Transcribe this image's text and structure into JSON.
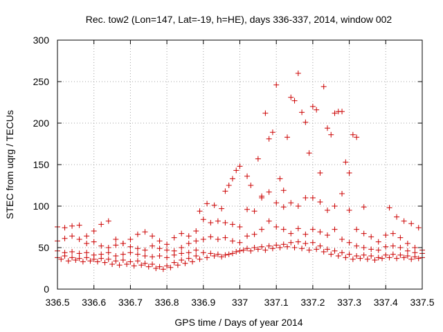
{
  "chart_data": {
    "type": "scatter",
    "title": "Rec. tow2 (Lon=147, Lat=-19, h=HE), days 336-337, 2014, window 002",
    "xlabel": "GPS time / Days of year 2014",
    "ylabel": "STEC from uqrg / TECUs",
    "xlim": [
      336.5,
      337.5
    ],
    "ylim": [
      0,
      300
    ],
    "xticks": [
      336.5,
      336.6,
      336.7,
      336.8,
      336.9,
      337,
      337.1,
      337.2,
      337.3,
      337.4,
      337.5
    ],
    "xtick_labels": [
      "336.5",
      "336.6",
      "336.7",
      "336.8",
      "336.9",
      "337",
      "337.1",
      "337.2",
      "337.3",
      "337.4",
      "337.5"
    ],
    "yticks": [
      0,
      50,
      100,
      150,
      200,
      250,
      300
    ],
    "ytick_labels": [
      "0",
      "50",
      "100",
      "150",
      "200",
      "250",
      "300"
    ],
    "grid": true,
    "marker": "+",
    "color": "#cc0000",
    "series": [
      {
        "points": [
          [
            336.5,
            75
          ],
          [
            336.52,
            74
          ],
          [
            336.54,
            76
          ],
          [
            336.56,
            77
          ],
          [
            336.58,
            64
          ],
          [
            336.6,
            70
          ],
          [
            336.62,
            78
          ],
          [
            336.64,
            82
          ],
          [
            336.66,
            60
          ],
          [
            336.68,
            55
          ],
          [
            336.7,
            60
          ],
          [
            336.72,
            66
          ],
          [
            336.74,
            69
          ],
          [
            336.76,
            64
          ],
          [
            336.78,
            58
          ],
          [
            336.8,
            54
          ],
          [
            336.82,
            62
          ],
          [
            336.84,
            67
          ],
          [
            336.86,
            64
          ],
          [
            336.88,
            70
          ],
          [
            336.89,
            94
          ],
          [
            336.91,
            103
          ],
          [
            336.93,
            101
          ],
          [
            336.95,
            97
          ],
          [
            336.96,
            118
          ],
          [
            336.97,
            125
          ],
          [
            336.98,
            133
          ],
          [
            336.99,
            143
          ],
          [
            337.0,
            148
          ],
          [
            337.02,
            136
          ],
          [
            337.03,
            125
          ],
          [
            337.05,
            157
          ],
          [
            337.06,
            110
          ],
          [
            337.07,
            212
          ],
          [
            337.08,
            181
          ],
          [
            337.09,
            189
          ],
          [
            337.1,
            246
          ],
          [
            337.11,
            133
          ],
          [
            337.12,
            119
          ],
          [
            337.13,
            183
          ],
          [
            337.14,
            231
          ],
          [
            337.15,
            227
          ],
          [
            337.16,
            260
          ],
          [
            337.17,
            213
          ],
          [
            337.18,
            201
          ],
          [
            337.19,
            164
          ],
          [
            337.2,
            220
          ],
          [
            337.21,
            216
          ],
          [
            337.22,
            140
          ],
          [
            337.23,
            244
          ],
          [
            337.24,
            194
          ],
          [
            337.25,
            186
          ],
          [
            337.26,
            212
          ],
          [
            337.27,
            214
          ],
          [
            337.28,
            214
          ],
          [
            337.29,
            153
          ],
          [
            337.3,
            140
          ],
          [
            337.31,
            186
          ],
          [
            337.32,
            183
          ],
          [
            337.34,
            99
          ],
          [
            337.41,
            98
          ],
          [
            337.43,
            87
          ],
          [
            337.45,
            82
          ],
          [
            337.47,
            79
          ],
          [
            337.49,
            74
          ]
        ]
      },
      {
        "points": [
          [
            336.5,
            58
          ],
          [
            336.52,
            61
          ],
          [
            336.54,
            64
          ],
          [
            336.56,
            60
          ],
          [
            336.58,
            55
          ],
          [
            336.6,
            57
          ],
          [
            336.62,
            52
          ],
          [
            336.64,
            50
          ],
          [
            336.66,
            53
          ],
          [
            336.68,
            55
          ],
          [
            336.7,
            51
          ],
          [
            336.72,
            49
          ],
          [
            336.74,
            47
          ],
          [
            336.76,
            52
          ],
          [
            336.78,
            49
          ],
          [
            336.8,
            47
          ],
          [
            336.82,
            46
          ],
          [
            336.84,
            50
          ],
          [
            336.86,
            55
          ],
          [
            336.88,
            58
          ],
          [
            336.9,
            84
          ],
          [
            336.92,
            80
          ],
          [
            336.94,
            82
          ],
          [
            336.96,
            80
          ],
          [
            336.98,
            78
          ],
          [
            337.0,
            75
          ],
          [
            337.02,
            96
          ],
          [
            337.04,
            94
          ],
          [
            337.06,
            112
          ],
          [
            337.08,
            117
          ],
          [
            337.1,
            104
          ],
          [
            337.12,
            99
          ],
          [
            337.14,
            104
          ],
          [
            337.16,
            100
          ],
          [
            337.18,
            110
          ],
          [
            337.2,
            110
          ],
          [
            337.22,
            105
          ],
          [
            337.24,
            95
          ],
          [
            337.26,
            100
          ],
          [
            337.28,
            115
          ],
          [
            337.3,
            95
          ],
          [
            337.32,
            72
          ],
          [
            337.34,
            67
          ],
          [
            337.36,
            63
          ],
          [
            337.38,
            57
          ],
          [
            337.4,
            65
          ],
          [
            337.42,
            67
          ],
          [
            337.44,
            62
          ],
          [
            337.46,
            55
          ],
          [
            337.48,
            50
          ],
          [
            337.5,
            47
          ]
        ]
      },
      {
        "points": [
          [
            336.5,
            46
          ],
          [
            336.52,
            44
          ],
          [
            336.54,
            45
          ],
          [
            336.56,
            43
          ],
          [
            336.58,
            44
          ],
          [
            336.6,
            41
          ],
          [
            336.62,
            42
          ],
          [
            336.64,
            44
          ],
          [
            336.66,
            40
          ],
          [
            336.68,
            42
          ],
          [
            336.7,
            44
          ],
          [
            336.72,
            42
          ],
          [
            336.74,
            40
          ],
          [
            336.76,
            39
          ],
          [
            336.78,
            40
          ],
          [
            336.8,
            38
          ],
          [
            336.82,
            41
          ],
          [
            336.84,
            43
          ],
          [
            336.86,
            44
          ],
          [
            336.88,
            47
          ],
          [
            336.9,
            60
          ],
          [
            336.92,
            63
          ],
          [
            336.94,
            60
          ],
          [
            336.96,
            62
          ],
          [
            336.98,
            58
          ],
          [
            337.0,
            56
          ],
          [
            337.02,
            64
          ],
          [
            337.04,
            66
          ],
          [
            337.06,
            72
          ],
          [
            337.08,
            82
          ],
          [
            337.1,
            75
          ],
          [
            337.12,
            72
          ],
          [
            337.14,
            67
          ],
          [
            337.16,
            73
          ],
          [
            337.18,
            66
          ],
          [
            337.2,
            72
          ],
          [
            337.22,
            69
          ],
          [
            337.24,
            65
          ],
          [
            337.26,
            72
          ],
          [
            337.28,
            60
          ],
          [
            337.3,
            56
          ],
          [
            337.32,
            52
          ],
          [
            337.34,
            50
          ],
          [
            337.36,
            48
          ],
          [
            337.38,
            47
          ],
          [
            337.4,
            51
          ],
          [
            337.42,
            52
          ],
          [
            337.44,
            50
          ],
          [
            337.46,
            46
          ],
          [
            337.48,
            44
          ],
          [
            337.5,
            43
          ]
        ]
      },
      {
        "points": [
          [
            336.5,
            38
          ],
          [
            336.52,
            40
          ],
          [
            336.54,
            38
          ],
          [
            336.56,
            37
          ],
          [
            336.58,
            38
          ],
          [
            336.6,
            36
          ],
          [
            336.62,
            37
          ],
          [
            336.64,
            36
          ],
          [
            336.66,
            34
          ],
          [
            336.68,
            35
          ],
          [
            336.7,
            33
          ],
          [
            336.72,
            34
          ],
          [
            336.74,
            31
          ],
          [
            336.76,
            30
          ],
          [
            336.78,
            27
          ],
          [
            336.8,
            28
          ],
          [
            336.82,
            32
          ],
          [
            336.84,
            35
          ],
          [
            336.86,
            37
          ],
          [
            336.88,
            40
          ],
          [
            336.9,
            44
          ],
          [
            336.92,
            43
          ],
          [
            336.94,
            42
          ],
          [
            336.96,
            41
          ],
          [
            336.98,
            43
          ],
          [
            337.0,
            46
          ],
          [
            337.02,
            49
          ],
          [
            337.04,
            50
          ],
          [
            337.06,
            51
          ],
          [
            337.08,
            52
          ],
          [
            337.1,
            53
          ],
          [
            337.12,
            54
          ],
          [
            337.14,
            56
          ],
          [
            337.16,
            57
          ],
          [
            337.18,
            55
          ],
          [
            337.2,
            56
          ],
          [
            337.22,
            52
          ],
          [
            337.24,
            48
          ],
          [
            337.26,
            46
          ],
          [
            337.28,
            44
          ],
          [
            337.3,
            42
          ],
          [
            337.32,
            40
          ],
          [
            337.34,
            41
          ],
          [
            337.36,
            40
          ],
          [
            337.38,
            38
          ],
          [
            337.4,
            41
          ],
          [
            337.42,
            42
          ],
          [
            337.44,
            41
          ],
          [
            337.46,
            40
          ],
          [
            337.48,
            39
          ],
          [
            337.5,
            38
          ]
        ]
      },
      {
        "points": [
          [
            336.51,
            36
          ],
          [
            336.53,
            34
          ],
          [
            336.55,
            35
          ],
          [
            336.57,
            33
          ],
          [
            336.59,
            34
          ],
          [
            336.61,
            33
          ],
          [
            336.63,
            32
          ],
          [
            336.65,
            30
          ],
          [
            336.67,
            29
          ],
          [
            336.69,
            30
          ],
          [
            336.71,
            28
          ],
          [
            336.73,
            29
          ],
          [
            336.75,
            27
          ],
          [
            336.77,
            25
          ],
          [
            336.79,
            24
          ],
          [
            336.81,
            26
          ],
          [
            336.83,
            29
          ],
          [
            336.85,
            31
          ],
          [
            336.87,
            33
          ],
          [
            336.89,
            36
          ],
          [
            336.91,
            38
          ],
          [
            336.93,
            40
          ],
          [
            336.95,
            39
          ],
          [
            336.97,
            42
          ],
          [
            336.99,
            45
          ],
          [
            337.01,
            47
          ],
          [
            337.03,
            46
          ],
          [
            337.05,
            48
          ],
          [
            337.07,
            47
          ],
          [
            337.09,
            49
          ],
          [
            337.11,
            50
          ],
          [
            337.13,
            51
          ],
          [
            337.15,
            50
          ],
          [
            337.17,
            49
          ],
          [
            337.19,
            47
          ],
          [
            337.21,
            48
          ],
          [
            337.23,
            45
          ],
          [
            337.25,
            42
          ],
          [
            337.27,
            40
          ],
          [
            337.29,
            38
          ],
          [
            337.31,
            36
          ],
          [
            337.33,
            37
          ],
          [
            337.35,
            36
          ],
          [
            337.37,
            35
          ],
          [
            337.39,
            37
          ],
          [
            337.41,
            38
          ],
          [
            337.43,
            37
          ],
          [
            337.45,
            38
          ],
          [
            337.47,
            36
          ],
          [
            337.49,
            37
          ]
        ]
      }
    ]
  }
}
